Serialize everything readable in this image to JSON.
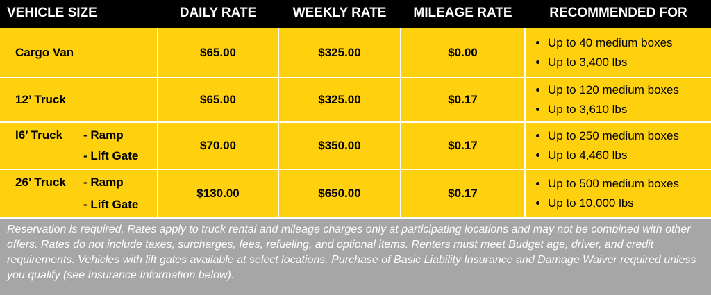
{
  "table": {
    "header": [
      "VEHICLE SIZE",
      "DAILY RATE",
      "WEEKLY RATE",
      "MILEAGE RATE",
      "RECOMMENDED FOR"
    ],
    "rows": [
      {
        "vehicle": "Cargo Van",
        "options": [],
        "daily": "$65.00",
        "weekly": "$325.00",
        "mileage": "$0.00",
        "recommended": [
          "Up to 40 medium boxes",
          "Up to 3,400 lbs"
        ]
      },
      {
        "vehicle": "12’ Truck",
        "options": [],
        "daily": "$65.00",
        "weekly": "$325.00",
        "mileage": "$0.17",
        "recommended": [
          "Up to 120 medium boxes",
          "Up to 3,610 lbs"
        ]
      },
      {
        "vehicle": "I6’ Truck",
        "options": [
          "- Ramp",
          "- Lift Gate"
        ],
        "daily": "$70.00",
        "weekly": "$350.00",
        "mileage": "$0.17",
        "recommended": [
          "Up to 250 medium boxes",
          "Up to 4,460 lbs"
        ]
      },
      {
        "vehicle": "26’ Truck",
        "options": [
          "- Ramp",
          "- Lift Gate"
        ],
        "daily": "$130.00",
        "weekly": "$650.00",
        "mileage": "$0.17",
        "recommended": [
          "Up to 500 medium boxes",
          "Up to 10,000 lbs"
        ]
      }
    ],
    "footnote": "Reservation is required. Rates apply to truck rental and mileage charges only at participating locations and may not be combined with other offers. Rates do not include taxes, surcharges, fees, refueling, and optional items. Renters must meet Budget age, driver, and credit requirements. Vehicles with lift gates available at select locations. Purchase of Basic Liability Insurance and Damage Waiver required unless you qualify (see Insurance Information below)."
  }
}
